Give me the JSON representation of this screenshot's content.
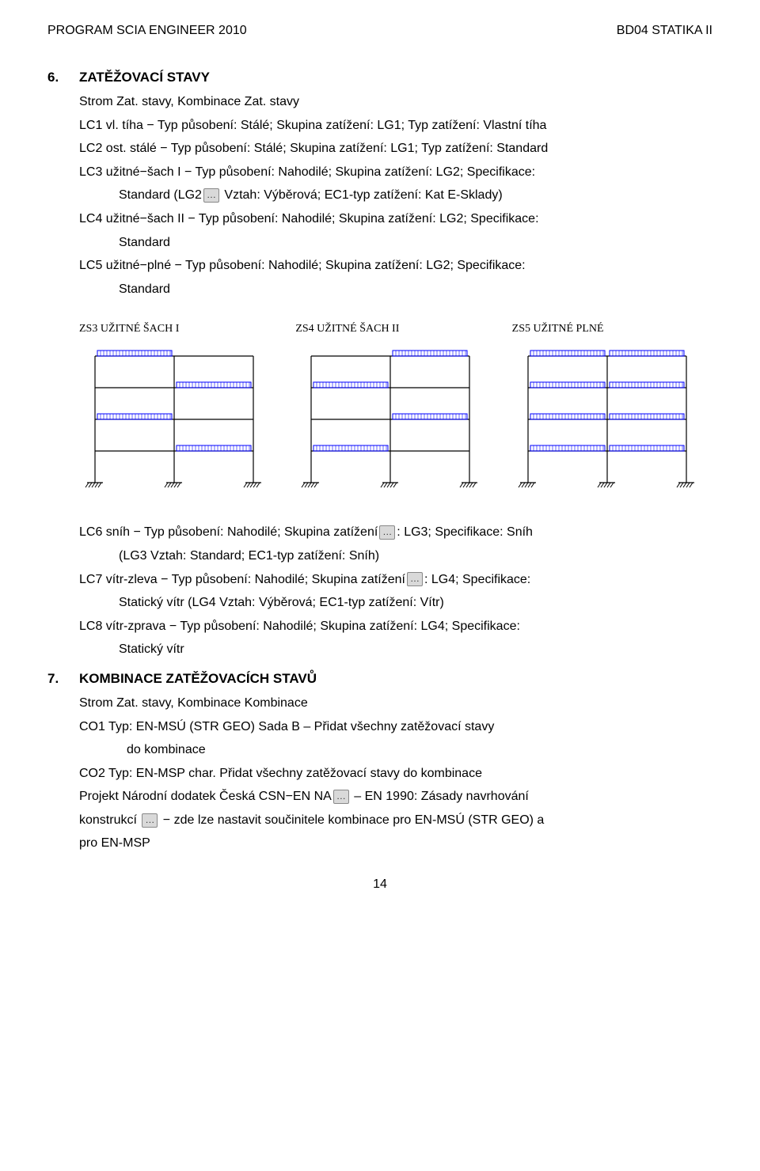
{
  "header": {
    "left": "PROGRAM SCIA ENGINEER 2010",
    "right": "BD04 STATIKA II"
  },
  "section6": {
    "num": "6.",
    "title": "ZATĚŽOVACÍ STAVY",
    "l1": "Strom Zat. stavy, Kombinace Zat. stavy",
    "l2": "LC1 vl. tíha − Typ působení: Stálé; Skupina zatížení: LG1; Typ zatížení: Vlastní tíha",
    "l3": "LC2 ost. stálé − Typ působení: Stálé; Skupina zatížení: LG1; Typ zatížení: Standard",
    "l4a": "LC3 užitné−šach I − Typ působení: Nahodilé; Skupina zatížení: LG2; Specifikace:",
    "l4b_a": "Standard (LG2",
    "l4b_b": " Vztah: Výběrová; EC1-typ zatížení: Kat E-Sklady)",
    "l5a": "LC4 užitné−šach II − Typ působení: Nahodilé; Skupina zatížení: LG2; Specifikace:",
    "l5b": "Standard",
    "l6a": "LC5 užitné−plné − Typ působení: Nahodilé; Skupina zatížení: LG2; Specifikace:",
    "l6b": "Standard",
    "l7a": "LC6 sníh − Typ působení: Nahodilé; Skupina zatížení",
    "l7b": ": LG3; Specifikace: Sníh",
    "l7c": "(LG3 Vztah: Standard; EC1-typ zatížení: Sníh)",
    "l8a": "LC7 vítr-zleva − Typ působení: Nahodilé; Skupina zatížení",
    "l8b": ": LG4; Specifikace:",
    "l8c": "Statický vítr (LG4 Vztah: Výběrová; EC1-typ zatížení: Vítr)",
    "l9a": "LC8 vítr-zprava − Typ působení: Nahodilé; Skupina zatížení: LG4; Specifikace:",
    "l9b": "Statický vítr"
  },
  "diagrams": {
    "titles": [
      "ZS3 UŽITNÉ ŠACH I",
      "ZS4 UŽITNÉ ŠACH II",
      "ZS5 UŽITNÉ PLNÉ"
    ],
    "frame_color": "#000000",
    "load_color": "#0000ff",
    "nfloors": 4,
    "nbays": 2,
    "z3": [
      [
        1,
        0
      ],
      [
        0,
        1
      ],
      [
        1,
        0
      ],
      [
        0,
        1
      ]
    ],
    "z4": [
      [
        0,
        1
      ],
      [
        1,
        0
      ],
      [
        0,
        1
      ],
      [
        1,
        0
      ]
    ],
    "z5": [
      [
        1,
        1
      ],
      [
        1,
        1
      ],
      [
        1,
        1
      ],
      [
        1,
        1
      ]
    ],
    "beam_w": 100,
    "floor_h": 40
  },
  "section7": {
    "num": "7.",
    "title": "KOMBINACE ZATĚŽOVACÍCH STAVŮ",
    "l1": "Strom Zat. stavy, Kombinace Kombinace",
    "l2": "CO1 Typ: EN-MSÚ (STR GEO) Sada B – Přidat všechny zatěžovací stavy",
    "l2b": "do kombinace",
    "l3": "CO2 Typ: EN-MSP char. Přidat všechny zatěžovací stavy do kombinace",
    "l4a": "Projekt Národní dodatek Česká CSN−EN NA",
    "l4b": " – EN 1990: Zásady navrhování",
    "l5a": "konstrukcí ",
    "l5b": " − zde lze nastavit součinitele kombinace pro EN-MSÚ (STR GEO) a",
    "l6": "pro EN-MSP"
  },
  "pagenum": "14"
}
